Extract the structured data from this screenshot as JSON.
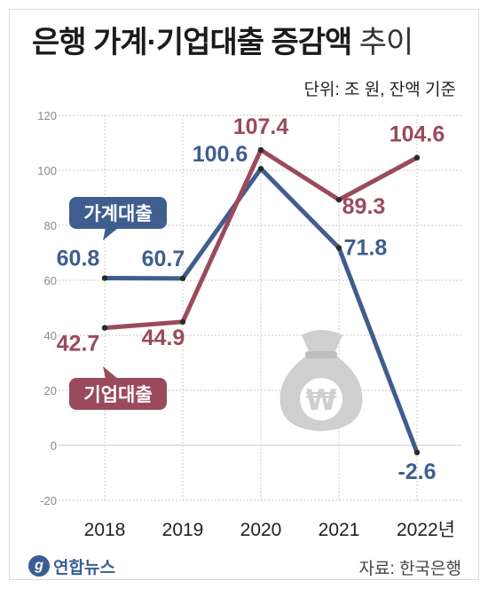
{
  "title_main": "은행 가계·기업대출 증감액",
  "title_light": "추이",
  "unit_note": "단위: 조 원, 잔액 기준",
  "source": "자료: 한국은행",
  "logo_text": "연합뉴스",
  "colors": {
    "household": "#3f5e8f",
    "corporate": "#9b4a5c",
    "grid": "#c8c8c8",
    "money_bag": "#cfcfcf"
  },
  "icons": [
    "money-bag-icon",
    "won-symbol-icon",
    "yonhap-logo-icon"
  ],
  "chart_data": {
    "type": "line",
    "categories": [
      "2018",
      "2019",
      "2020",
      "2021",
      "2022년"
    ],
    "yticks": [
      -20,
      0,
      20,
      40,
      60,
      80,
      100,
      120
    ],
    "ylim": [
      -20,
      120
    ],
    "grid": true,
    "series": [
      {
        "name": "가계대출",
        "values": [
          60.8,
          60.7,
          100.6,
          71.8,
          -2.6
        ],
        "labels": [
          "60.8",
          "60.7",
          "100.6",
          "71.8",
          "-2.6"
        ]
      },
      {
        "name": "기업대출",
        "values": [
          42.7,
          44.9,
          107.4,
          89.3,
          104.6
        ],
        "labels": [
          "42.7",
          "44.9",
          "107.4",
          "89.3",
          "104.6"
        ]
      }
    ]
  }
}
